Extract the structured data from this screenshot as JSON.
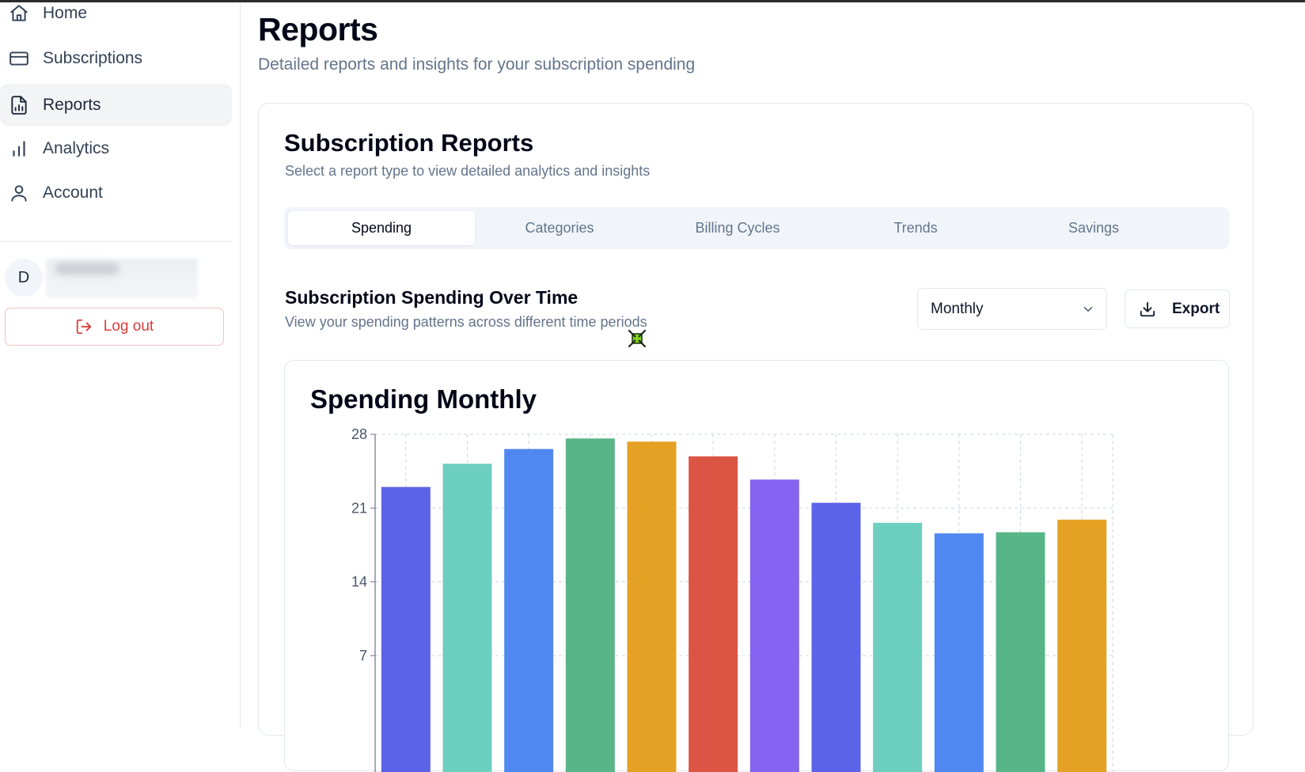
{
  "sidebar": {
    "items": [
      {
        "label": "Home",
        "icon": "home-icon"
      },
      {
        "label": "Subscriptions",
        "icon": "credit-card-icon"
      },
      {
        "label": "Reports",
        "icon": "file-chart-icon"
      },
      {
        "label": "Analytics",
        "icon": "bar-chart-icon"
      },
      {
        "label": "Account",
        "icon": "user-icon"
      }
    ],
    "active": "Reports",
    "avatar_initial": "D",
    "logout_label": "Log out"
  },
  "header": {
    "title": "Reports",
    "subtitle": "Detailed reports and insights for your subscription spending"
  },
  "card": {
    "title": "Subscription Reports",
    "subtitle": "Select a report type to view detailed analytics and insights",
    "tabs": [
      "Spending",
      "Categories",
      "Billing Cycles",
      "Trends",
      "Savings"
    ],
    "active_tab": "Spending"
  },
  "section": {
    "title": "Subscription Spending Over Time",
    "subtitle": "View your spending patterns across different time periods",
    "period_select": "Monthly",
    "export_label": "Export"
  },
  "colors": {
    "accent_danger": "#dc3b3b",
    "bar_palette": [
      "#5b63e8",
      "#6dcfbf",
      "#4f88f0",
      "#58b587",
      "#e5a124",
      "#dc5444",
      "#8663f0"
    ]
  },
  "chart_data": {
    "type": "bar",
    "title": "Spending Monthly",
    "categories": [
      "",
      "",
      "",
      "",
      "",
      "",
      "",
      "",
      "",
      "",
      "",
      ""
    ],
    "values": [
      23.0,
      25.2,
      26.6,
      27.6,
      27.3,
      25.9,
      23.7,
      21.5,
      19.6,
      18.6,
      18.7,
      19.9
    ],
    "yticks": [
      7,
      14,
      21,
      28
    ],
    "ylim": [
      0,
      28
    ],
    "xlabel": "",
    "ylabel": "",
    "grid": true
  }
}
